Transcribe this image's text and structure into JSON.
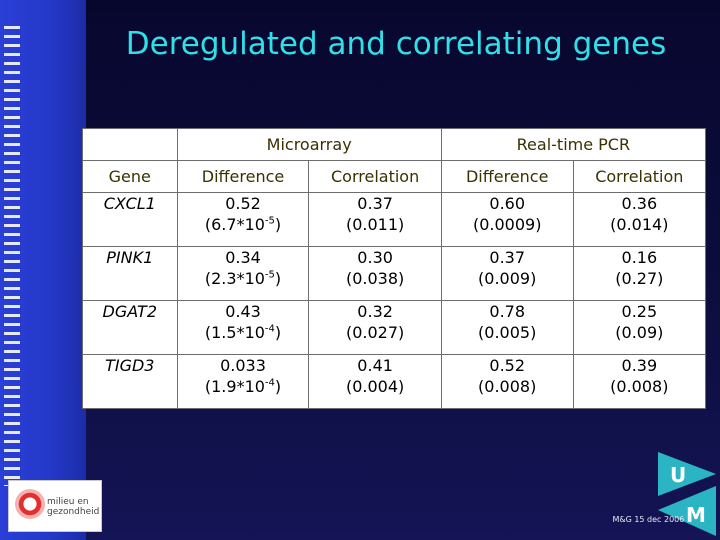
{
  "slide": {
    "title": "Deregulated and correlating genes",
    "footer": "M&G 15 dec 2006 1"
  },
  "table": {
    "group_headers": [
      "Microarray",
      "Real-time PCR"
    ],
    "column_headers": [
      "Gene",
      "Difference",
      "Correlation",
      "Difference",
      "Correlation"
    ],
    "rows": [
      {
        "gene": "CXCL1",
        "ma_diff": "0.52",
        "ma_diff_p_base": "(6.7*10",
        "ma_diff_p_exp": "-5",
        "ma_diff_p_close": ")",
        "ma_corr": "0.37",
        "ma_corr_p": "(0.011)",
        "pcr_diff": "0.60",
        "pcr_diff_p": "(0.0009)",
        "pcr_corr": "0.36",
        "pcr_corr_p": "(0.014)"
      },
      {
        "gene": "PINK1",
        "ma_diff": "0.34",
        "ma_diff_p_base": "(2.3*10",
        "ma_diff_p_exp": "-5",
        "ma_diff_p_close": ")",
        "ma_corr": "0.30",
        "ma_corr_p": "(0.038)",
        "pcr_diff": "0.37",
        "pcr_diff_p": "(0.009)",
        "pcr_corr": "0.16",
        "pcr_corr_p": "(0.27)"
      },
      {
        "gene": "DGAT2",
        "ma_diff": "0.43",
        "ma_diff_p_base": "(1.5*10",
        "ma_diff_p_exp": "-4",
        "ma_diff_p_close": ")",
        "ma_corr": "0.32",
        "ma_corr_p": "(0.027)",
        "pcr_diff": "0.78",
        "pcr_diff_p": "(0.005)",
        "pcr_corr": "0.25",
        "pcr_corr_p": "(0.09)"
      },
      {
        "gene": "TIGD3",
        "ma_diff": "0.033",
        "ma_diff_p_base": "(1.9*10",
        "ma_diff_p_exp": "-4",
        "ma_diff_p_close": ")",
        "ma_corr": "0.41",
        "ma_corr_p": "(0.004)",
        "pcr_diff": "0.52",
        "pcr_diff_p": "(0.008)",
        "pcr_corr": "0.39",
        "pcr_corr_p": "(0.008)"
      }
    ]
  },
  "logo_left": {
    "line1": "milieu en",
    "line2": "gezondheid"
  },
  "logo_right": {
    "top_letter": "U",
    "bottom_letter": "M"
  },
  "colors": {
    "title": "#2fe0e8",
    "background": "#0a0a36",
    "strip": "#2a3fd6"
  }
}
